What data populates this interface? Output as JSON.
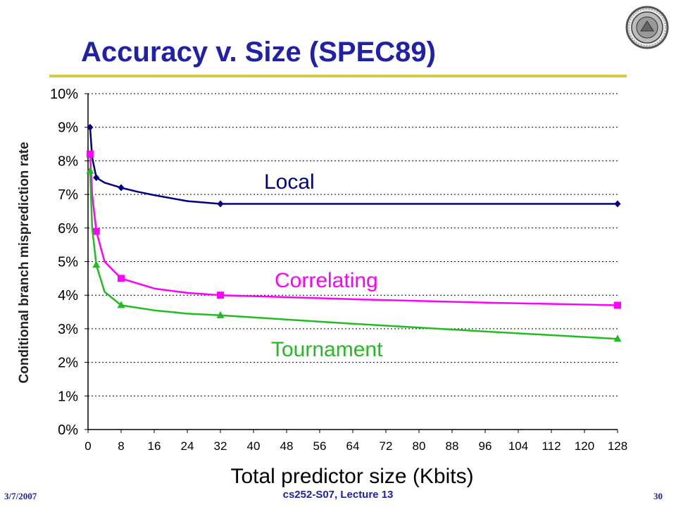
{
  "slide": {
    "title": "Accuracy v. Size (SPEC89)",
    "date": "3/7/2007",
    "course": "cs252-S07, Lecture 13",
    "page": "30"
  },
  "colors": {
    "title": "#2020a8",
    "rule": "#d8c84a",
    "local": "#000080",
    "correlating": "#ff00ff",
    "tournament": "#22bb22"
  },
  "chart_data": {
    "type": "line",
    "title": "",
    "xlabel": "Total predictor size (Kbits)",
    "ylabel": "Conditional branch misprediction rate",
    "xlim": [
      0,
      128
    ],
    "ylim": [
      0,
      10
    ],
    "x_ticks": [
      "0",
      "8",
      "16",
      "24",
      "32",
      "40",
      "48",
      "56",
      "64",
      "72",
      "80",
      "88",
      "96",
      "104",
      "112",
      "120",
      "128"
    ],
    "y_ticks": [
      "0%",
      "1%",
      "2%",
      "3%",
      "4%",
      "5%",
      "6%",
      "7%",
      "8%",
      "9%",
      "10%"
    ],
    "grid": "horizontal-dotted",
    "series": [
      {
        "name": "Local",
        "color": "#000080",
        "marker": "diamond",
        "points": [
          [
            0.5,
            9.0
          ],
          [
            2,
            7.5
          ],
          [
            8,
            7.2
          ],
          [
            32,
            6.72
          ],
          [
            128,
            6.72
          ]
        ],
        "curve": [
          [
            0.5,
            9.0
          ],
          [
            1,
            8.1
          ],
          [
            2,
            7.5
          ],
          [
            4,
            7.35
          ],
          [
            8,
            7.2
          ],
          [
            12,
            7.08
          ],
          [
            16,
            6.98
          ],
          [
            24,
            6.8
          ],
          [
            32,
            6.72
          ],
          [
            64,
            6.72
          ],
          [
            128,
            6.72
          ]
        ]
      },
      {
        "name": "Correlating",
        "color": "#ff00ff",
        "marker": "square",
        "points": [
          [
            0.5,
            8.2
          ],
          [
            2,
            5.9
          ],
          [
            8,
            4.5
          ],
          [
            32,
            4.0
          ],
          [
            128,
            3.7
          ]
        ],
        "curve": [
          [
            0.5,
            8.2
          ],
          [
            1,
            7.0
          ],
          [
            2,
            5.9
          ],
          [
            4,
            5.0
          ],
          [
            8,
            4.5
          ],
          [
            16,
            4.2
          ],
          [
            24,
            4.07
          ],
          [
            32,
            4.0
          ],
          [
            64,
            3.88
          ],
          [
            96,
            3.78
          ],
          [
            128,
            3.7
          ]
        ]
      },
      {
        "name": "Tournament",
        "color": "#22bb22",
        "marker": "triangle",
        "points": [
          [
            0.5,
            7.7
          ],
          [
            2,
            4.9
          ],
          [
            8,
            3.7
          ],
          [
            32,
            3.4
          ],
          [
            128,
            2.7
          ]
        ],
        "curve": [
          [
            0.5,
            7.7
          ],
          [
            1,
            6.0
          ],
          [
            2,
            4.9
          ],
          [
            4,
            4.1
          ],
          [
            8,
            3.7
          ],
          [
            16,
            3.55
          ],
          [
            24,
            3.45
          ],
          [
            32,
            3.4
          ],
          [
            64,
            3.15
          ],
          [
            96,
            2.92
          ],
          [
            128,
            2.7
          ]
        ]
      }
    ]
  }
}
